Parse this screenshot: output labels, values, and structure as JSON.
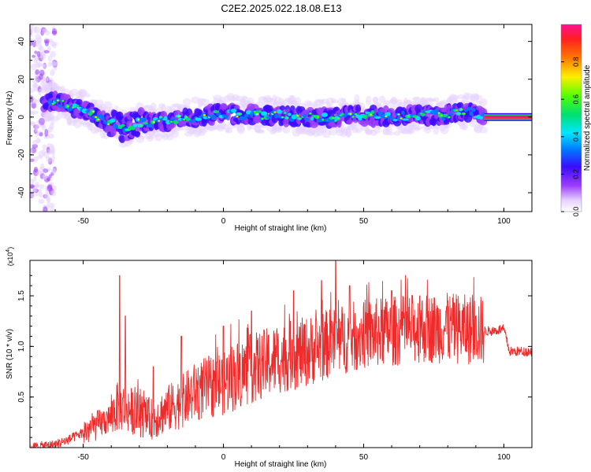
{
  "title": "C2E2.2025.022.18.08.E13",
  "chart_data": [
    {
      "type": "heatmap",
      "xlabel": "Height of straight line (km)",
      "ylabel": "Frequency (Hz)",
      "xlim": [
        -69,
        110
      ],
      "ylim": [
        -50,
        49
      ],
      "xticks": [
        -50,
        0,
        50,
        100
      ],
      "yticks": [
        -40,
        -20,
        0,
        20,
        40
      ],
      "colorbar": {
        "label": "Normalized spectral amplitude",
        "range": [
          0,
          1
        ],
        "ticks": [
          "0.0",
          "0.2",
          "0.4",
          "0.6",
          "0.8"
        ],
        "colors": [
          "#ffffff",
          "#e6d2ff",
          "#9b3cff",
          "#3a0cff",
          "#0077ff",
          "#00e6ff",
          "#00e070",
          "#55ff00",
          "#ffee00",
          "#ff7a00",
          "#ff2020",
          "#ff1090"
        ]
      },
      "ridge": [
        {
          "x": -69,
          "y": 6
        },
        {
          "x": -60,
          "y": 8
        },
        {
          "x": -55,
          "y": 6
        },
        {
          "x": -48,
          "y": 3
        },
        {
          "x": -42,
          "y": -2
        },
        {
          "x": -36,
          "y": -6
        },
        {
          "x": -30,
          "y": -3
        },
        {
          "x": -20,
          "y": -2
        },
        {
          "x": -10,
          "y": 0
        },
        {
          "x": 0,
          "y": 2
        },
        {
          "x": 10,
          "y": 1
        },
        {
          "x": 20,
          "y": 1
        },
        {
          "x": 30,
          "y": 0
        },
        {
          "x": 40,
          "y": 0
        },
        {
          "x": 50,
          "y": 1
        },
        {
          "x": 60,
          "y": 0
        },
        {
          "x": 70,
          "y": 1
        },
        {
          "x": 80,
          "y": 1
        },
        {
          "x": 85,
          "y": 3
        },
        {
          "x": 93,
          "y": 1
        },
        {
          "x": 110,
          "y": 0
        }
      ],
      "noise_region_x": [
        -69,
        -60
      ],
      "steady_tone_x": [
        93,
        110
      ],
      "steady_tone_y": 0
    },
    {
      "type": "line",
      "xlabel": "Height of straight line (km)",
      "ylabel": "SNR (10 * v/v)",
      "yscale_note": "(x10^4)",
      "xlim": [
        -69,
        110
      ],
      "ylim": [
        0,
        1.85
      ],
      "xticks": [
        -50,
        0,
        50,
        100
      ],
      "yticks": [
        "0.5",
        "1.0",
        "1.5"
      ],
      "series": [
        {
          "color": "#ee2b2b",
          "trend": [
            {
              "x": -69,
              "y": 0.0
            },
            {
              "x": -60,
              "y": 0.03
            },
            {
              "x": -55,
              "y": 0.08
            },
            {
              "x": -50,
              "y": 0.15
            },
            {
              "x": -45,
              "y": 0.22
            },
            {
              "x": -40,
              "y": 0.3
            },
            {
              "x": -38,
              "y": 0.4
            },
            {
              "x": -35,
              "y": 0.4
            },
            {
              "x": -30,
              "y": 0.32
            },
            {
              "x": -25,
              "y": 0.28
            },
            {
              "x": -20,
              "y": 0.38
            },
            {
              "x": -15,
              "y": 0.45
            },
            {
              "x": -10,
              "y": 0.55
            },
            {
              "x": -5,
              "y": 0.6
            },
            {
              "x": 0,
              "y": 0.65
            },
            {
              "x": 10,
              "y": 0.78
            },
            {
              "x": 20,
              "y": 0.88
            },
            {
              "x": 30,
              "y": 0.95
            },
            {
              "x": 40,
              "y": 1.05
            },
            {
              "x": 50,
              "y": 1.12
            },
            {
              "x": 60,
              "y": 1.15
            },
            {
              "x": 70,
              "y": 1.18
            },
            {
              "x": 80,
              "y": 1.18
            },
            {
              "x": 90,
              "y": 1.16
            },
            {
              "x": 95,
              "y": 1.15
            },
            {
              "x": 100,
              "y": 1.17
            },
            {
              "x": 102,
              "y": 0.95
            },
            {
              "x": 110,
              "y": 0.95
            }
          ],
          "spikes": [
            {
              "x": -37,
              "y": 1.7
            },
            {
              "x": -35,
              "y": 1.3
            },
            {
              "x": -25,
              "y": 0.8
            },
            {
              "x": -15,
              "y": 1.1
            },
            {
              "x": 0,
              "y": 1.2
            },
            {
              "x": 10,
              "y": 1.35
            },
            {
              "x": 25,
              "y": 1.55
            },
            {
              "x": 35,
              "y": 1.65
            },
            {
              "x": 40,
              "y": 1.85
            },
            {
              "x": 45,
              "y": 1.6
            },
            {
              "x": 60,
              "y": 1.55
            },
            {
              "x": 70,
              "y": 1.5
            },
            {
              "x": 80,
              "y": 1.45
            },
            {
              "x": 90,
              "y": 1.3
            }
          ]
        }
      ]
    }
  ]
}
